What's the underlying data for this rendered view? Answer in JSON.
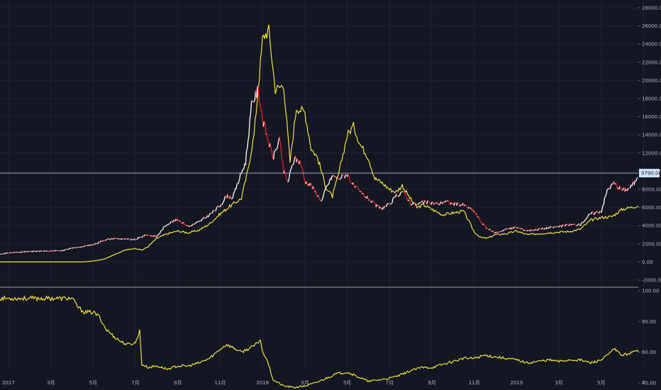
{
  "colors": {
    "background": "#131722",
    "separator": "#c8c8c8",
    "crosshair": "#d0d8e8",
    "price_up": "#ffffff",
    "price_down": "#e8202a",
    "yellow": "#f0e040",
    "axis_text": "#b2b5be",
    "price_tag_bg": "#cfe3f6",
    "price_tag_text": "#1a1e29"
  },
  "chart_data": [
    {
      "type": "line",
      "panel": "price",
      "ylim": [
        -2000,
        28000
      ],
      "yticks": [
        "28000.00",
        "26000.00",
        "24000.00",
        "22000.00",
        "20000.00",
        "18000.00",
        "16000.00",
        "14000.00",
        "12000.00",
        "10000.00",
        "8000.00",
        "6000.00",
        "4000.00",
        "2000.00",
        "0.00",
        "-2000.00"
      ],
      "last_price_label": "9790.00",
      "last_price": 9790,
      "x_labels": [
        "2017",
        "3月",
        "5月",
        "7月",
        "9月",
        "11月",
        "2018",
        "3月",
        "5月",
        "7月",
        "9月",
        "11月",
        "2019",
        "3月",
        "5月",
        "7"
      ],
      "x_label_months": [
        0,
        2,
        4,
        6,
        8,
        10,
        12,
        14,
        16,
        18,
        20,
        22,
        24,
        26,
        28,
        30
      ],
      "x_range_months": [
        -0.4,
        29.75
      ],
      "series": [
        {
          "role": "price",
          "x": [
            -0.4,
            0,
            1,
            2,
            2.5,
            3,
            4,
            4.5,
            5,
            5.5,
            6,
            6.5,
            7,
            7.5,
            8,
            8.5,
            9,
            9.5,
            10,
            10.3,
            10.6,
            11,
            11.2,
            11.5,
            11.8,
            12,
            12.2,
            12.5,
            12.8,
            13,
            13.2,
            13.5,
            13.8,
            14,
            14.3,
            14.5,
            14.8,
            15,
            15.3,
            15.6,
            16,
            16.3,
            16.6,
            17,
            17.3,
            17.6,
            18,
            18.3,
            18.6,
            19,
            19.3,
            19.6,
            20,
            20.3,
            20.6,
            21,
            21.5,
            22,
            22.3,
            22.6,
            23,
            23.5,
            24,
            24.5,
            25,
            25.5,
            26,
            26.5,
            27,
            27.5,
            28,
            28.3,
            28.6,
            29,
            29.3,
            29.6,
            29.75
          ],
          "values": [
            850,
            1000,
            1150,
            1200,
            1250,
            1500,
            1900,
            2400,
            2600,
            2500,
            2450,
            3000,
            2800,
            4200,
            4700,
            3900,
            4400,
            5200,
            6200,
            7300,
            7100,
            9800,
            11000,
            17500,
            19000,
            15800,
            14000,
            11500,
            13500,
            10000,
            8800,
            11400,
            11000,
            8900,
            8500,
            7700,
            6700,
            8100,
            9500,
            9200,
            9700,
            8400,
            7700,
            7000,
            6300,
            5900,
            6300,
            7200,
            7800,
            6500,
            6300,
            6600,
            6500,
            6400,
            6700,
            6400,
            6300,
            5600,
            4500,
            3700,
            3200,
            3600,
            3800,
            3450,
            3600,
            3750,
            3900,
            4100,
            4100,
            5300,
            5600,
            8000,
            8700,
            7900,
            8100,
            8800,
            9790
          ]
        },
        {
          "role": "yellow",
          "x": [
            -0.4,
            0,
            1,
            2,
            2.5,
            3,
            3.5,
            4,
            4.5,
            5,
            5.5,
            6,
            6.3,
            6.6,
            7,
            7.5,
            8,
            8.5,
            9,
            9.5,
            10,
            10.5,
            11,
            11.3,
            11.6,
            12,
            12.1,
            12.3,
            12.6,
            13,
            13.3,
            13.6,
            14,
            14.3,
            14.6,
            15,
            15.3,
            15.6,
            16,
            16.3,
            16.6,
            17,
            17.3,
            17.6,
            18,
            18.3,
            18.6,
            19,
            19.3,
            19.6,
            20,
            20.5,
            21,
            21.5,
            22,
            22.3,
            22.6,
            23,
            23.5,
            24,
            24.5,
            25,
            25.5,
            26,
            26.5,
            27,
            27.5,
            28,
            28.5,
            29,
            29.75
          ],
          "values": [
            0,
            0,
            0,
            0,
            0,
            0,
            0,
            100,
            300,
            800,
            1300,
            1500,
            1300,
            1700,
            2600,
            3100,
            3400,
            3200,
            3500,
            4200,
            5300,
            6200,
            7000,
            10000,
            14000,
            24500,
            25000,
            25500,
            19000,
            19500,
            11000,
            17000,
            16500,
            12500,
            11500,
            8200,
            7200,
            9700,
            14000,
            15000,
            13000,
            11500,
            9200,
            8800,
            8000,
            7700,
            8400,
            6900,
            6000,
            6300,
            5800,
            5200,
            5400,
            5600,
            3300,
            2700,
            2600,
            3000,
            3100,
            3400,
            3000,
            3100,
            3200,
            3300,
            3350,
            3600,
            4600,
            4900,
            5000,
            5800,
            6200
          ]
        }
      ]
    },
    {
      "type": "line",
      "panel": "indicator",
      "ylim": [
        34,
        100
      ],
      "yticks": [
        "100.00",
        "80.00",
        "60.00",
        "40.00"
      ],
      "series": [
        {
          "role": "yellow",
          "x": [
            -0.4,
            0,
            1,
            2,
            3,
            3.3,
            3.6,
            4,
            4.3,
            4.6,
            5,
            5.3,
            5.6,
            6,
            6.2,
            6.3,
            6.6,
            7,
            7.5,
            8,
            8.5,
            9,
            9.5,
            10,
            10.3,
            10.6,
            11,
            11.3,
            11.6,
            11.9,
            12,
            12.2,
            12.5,
            13,
            13.5,
            14,
            14.5,
            15,
            15.5,
            16,
            16.5,
            17,
            17.5,
            18,
            18.5,
            19,
            19.5,
            20,
            20.5,
            21,
            21.5,
            22,
            22.5,
            23,
            23.5,
            24,
            24.5,
            25,
            25.5,
            26,
            26.5,
            27,
            27.5,
            28,
            28.3,
            28.6,
            29,
            29.75
          ],
          "values": [
            95,
            95,
            95,
            95,
            95,
            89,
            86,
            86,
            83,
            75,
            70,
            67,
            65,
            66,
            74,
            52,
            50,
            51,
            49,
            51,
            51,
            53,
            56,
            62,
            65,
            63,
            60,
            62,
            64,
            68,
            60,
            56,
            42,
            38,
            37,
            38,
            40,
            43,
            46,
            47,
            44,
            41,
            42,
            43,
            45,
            48,
            50,
            50,
            52,
            54,
            56,
            56,
            58,
            57,
            56,
            55,
            53,
            54,
            55,
            54,
            55,
            55,
            53,
            55,
            58,
            62,
            58,
            61
          ]
        }
      ]
    }
  ]
}
